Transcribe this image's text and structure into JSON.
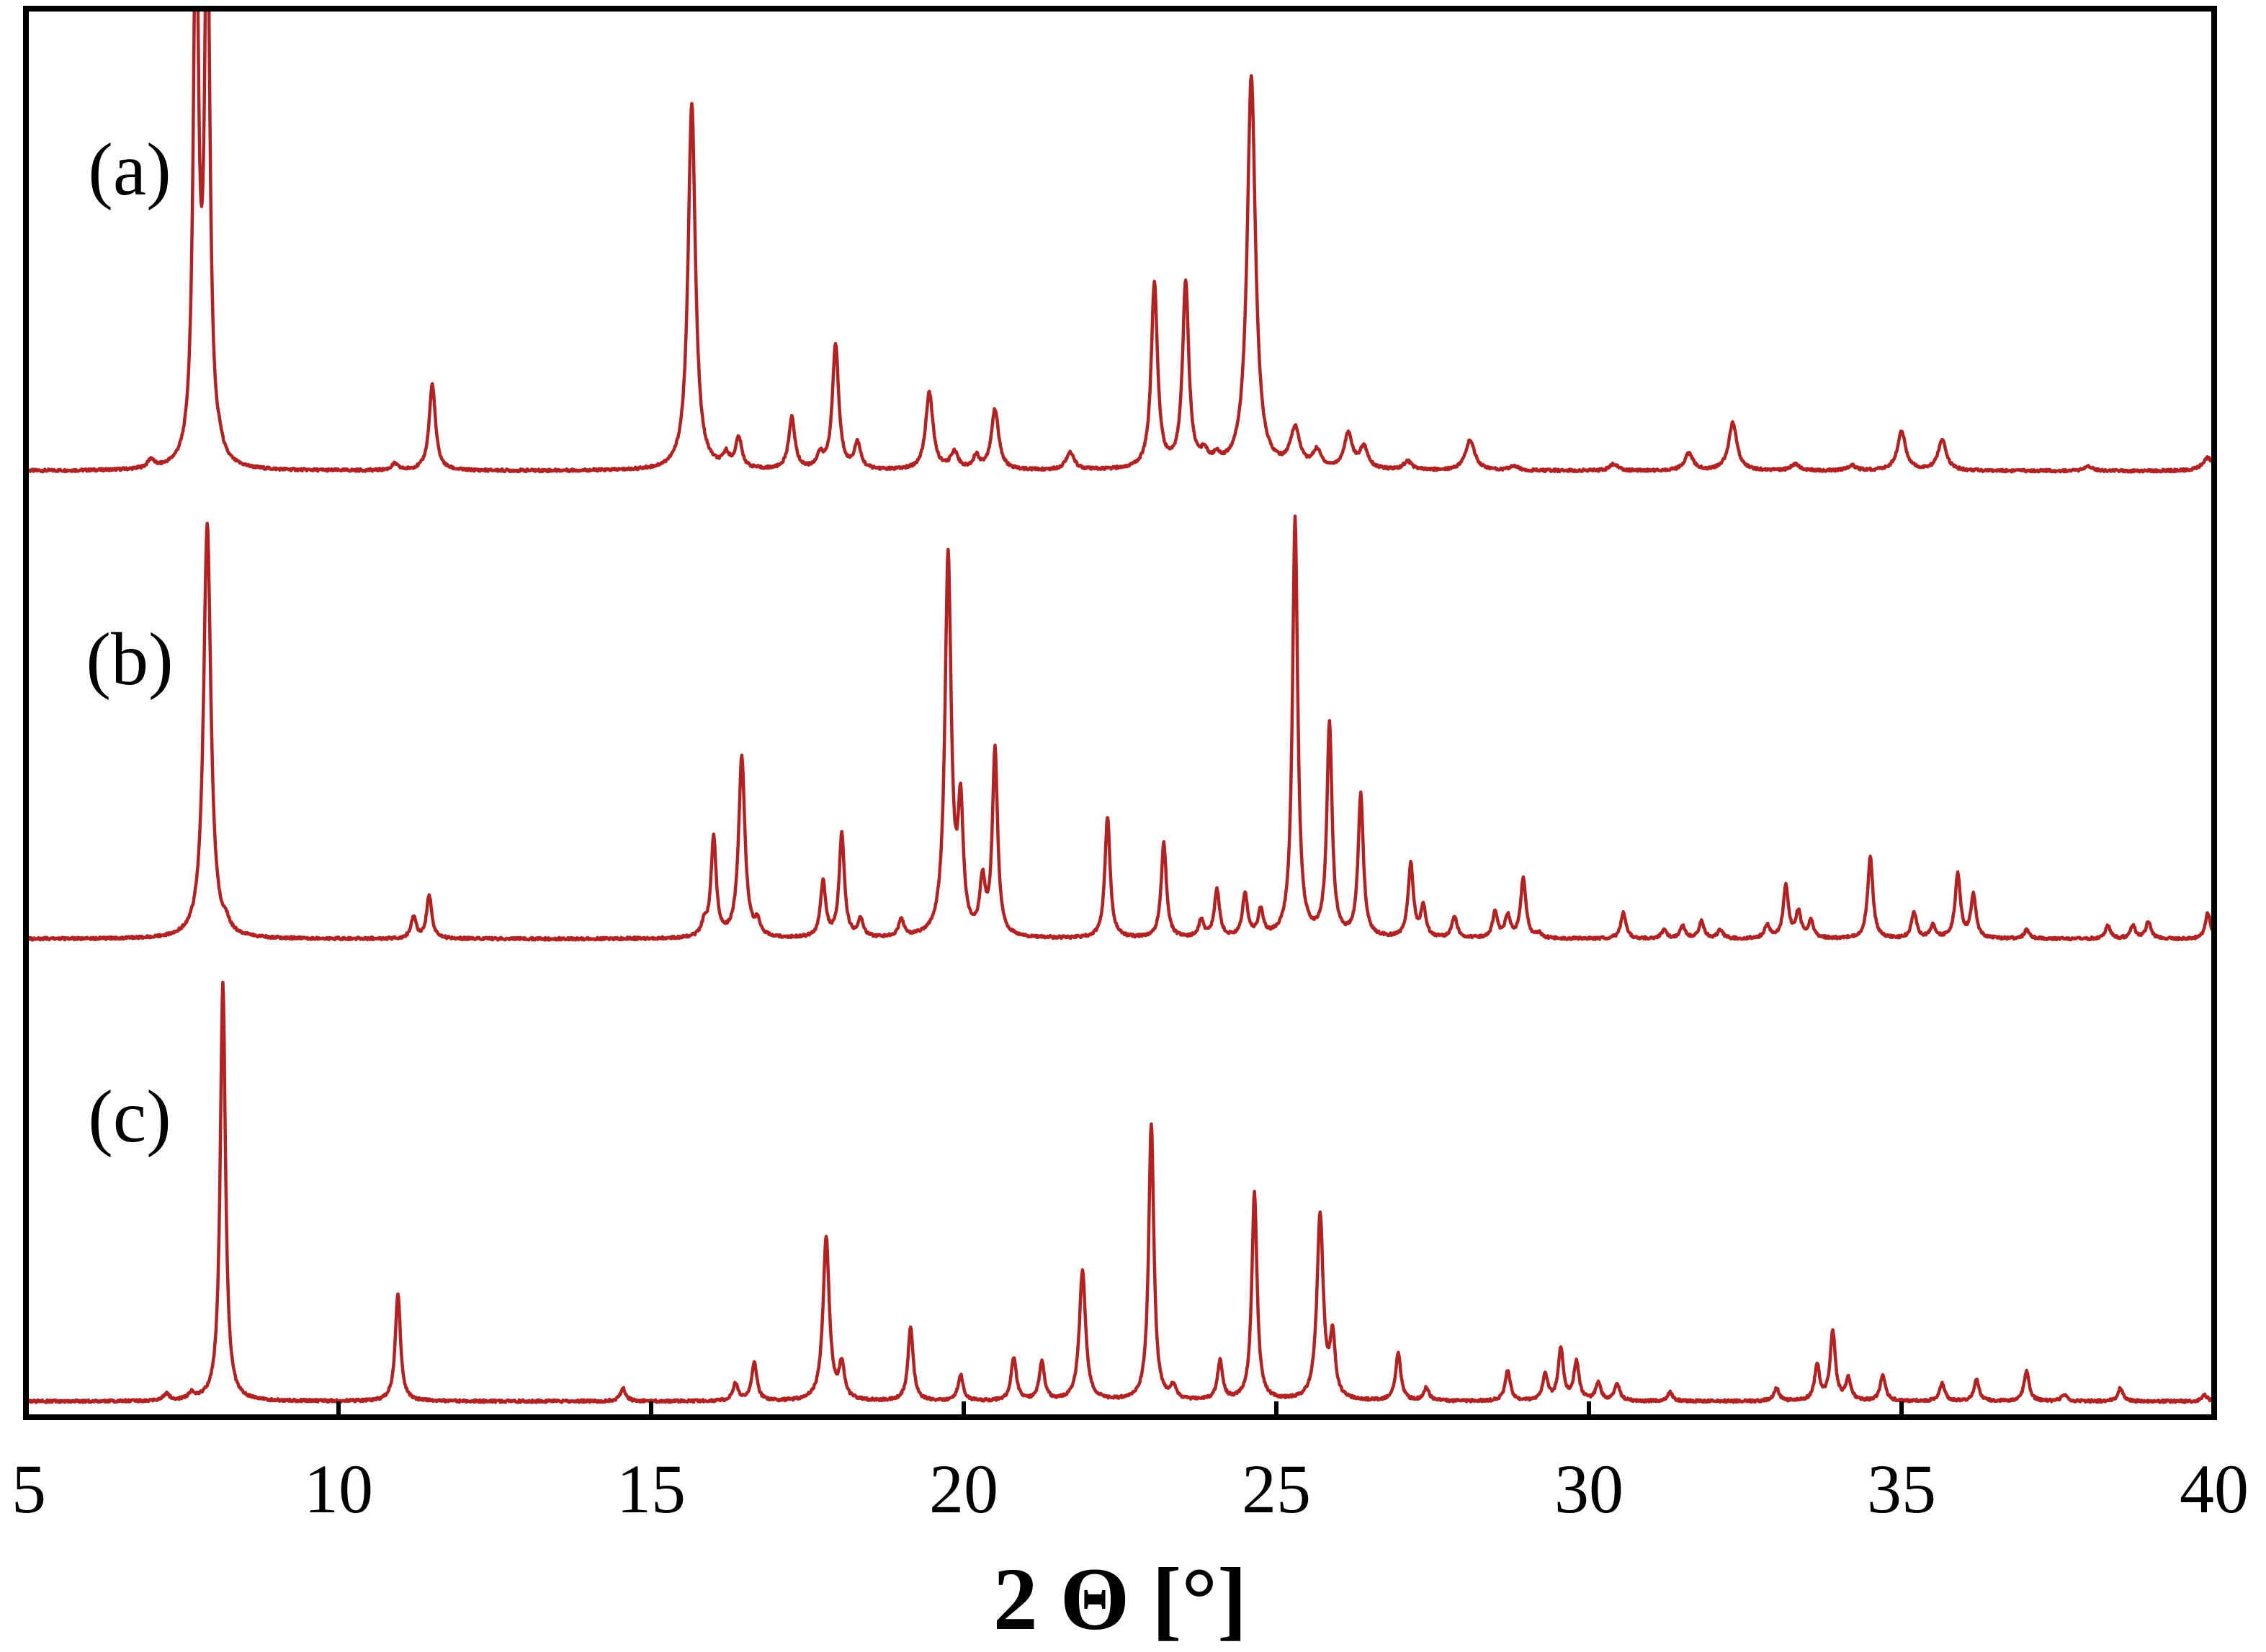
{
  "chart_data": {
    "type": "line",
    "xlabel": "2 Θ [°]",
    "xlim": [
      5,
      40
    ],
    "xticks": [
      5,
      10,
      15,
      20,
      25,
      30,
      35,
      40
    ],
    "y_ticks_shown": false,
    "grid": false,
    "line_color": "#b22222",
    "series": [
      {
        "label": "(a)",
        "baseline": 0.01,
        "peaks": [
          [
            7.0,
            0.02,
            0.06
          ],
          [
            7.72,
            1.3,
            0.05
          ],
          [
            7.9,
            1.3,
            0.05
          ],
          [
            8.1,
            0.02,
            0.06
          ],
          [
            10.9,
            0.015,
            0.06
          ],
          [
            11.5,
            0.2,
            0.06
          ],
          [
            15.65,
            0.85,
            0.07
          ],
          [
            16.2,
            0.03,
            0.06
          ],
          [
            16.4,
            0.07,
            0.06
          ],
          [
            17.25,
            0.12,
            0.06
          ],
          [
            17.7,
            0.03,
            0.06
          ],
          [
            17.95,
            0.29,
            0.06
          ],
          [
            18.3,
            0.06,
            0.06
          ],
          [
            19.45,
            0.18,
            0.07
          ],
          [
            19.85,
            0.04,
            0.07
          ],
          [
            20.2,
            0.03,
            0.06
          ],
          [
            20.5,
            0.14,
            0.07
          ],
          [
            21.7,
            0.04,
            0.08
          ],
          [
            23.05,
            0.43,
            0.06
          ],
          [
            23.55,
            0.43,
            0.06
          ],
          [
            23.85,
            0.03,
            0.07
          ],
          [
            24.05,
            0.02,
            0.07
          ],
          [
            24.6,
            0.91,
            0.08
          ],
          [
            25.3,
            0.09,
            0.09
          ],
          [
            25.65,
            0.04,
            0.08
          ],
          [
            26.15,
            0.08,
            0.08
          ],
          [
            26.4,
            0.05,
            0.08
          ],
          [
            27.1,
            0.02,
            0.08
          ],
          [
            28.1,
            0.07,
            0.09
          ],
          [
            28.8,
            0.01,
            0.08
          ],
          [
            30.4,
            0.015,
            0.08
          ],
          [
            31.6,
            0.04,
            0.08
          ],
          [
            32.3,
            0.11,
            0.08
          ],
          [
            33.3,
            0.015,
            0.08
          ],
          [
            34.2,
            0.012,
            0.08
          ],
          [
            35.0,
            0.09,
            0.08
          ],
          [
            35.65,
            0.07,
            0.08
          ],
          [
            38.0,
            0.01,
            0.08
          ],
          [
            39.9,
            0.03,
            0.1
          ]
        ]
      },
      {
        "label": "(b)",
        "baseline": 0.01,
        "peaks": [
          [
            7.9,
            0.96,
            0.07
          ],
          [
            8.2,
            0.02,
            0.06
          ],
          [
            11.2,
            0.05,
            0.05
          ],
          [
            11.45,
            0.1,
            0.05
          ],
          [
            15.85,
            0.03,
            0.05
          ],
          [
            16.0,
            0.23,
            0.05
          ],
          [
            16.45,
            0.42,
            0.06
          ],
          [
            16.7,
            0.03,
            0.05
          ],
          [
            17.75,
            0.13,
            0.05
          ],
          [
            18.05,
            0.24,
            0.05
          ],
          [
            18.35,
            0.04,
            0.05
          ],
          [
            19.0,
            0.04,
            0.05
          ],
          [
            19.75,
            0.88,
            0.06
          ],
          [
            19.95,
            0.28,
            0.05
          ],
          [
            20.3,
            0.12,
            0.05
          ],
          [
            20.5,
            0.43,
            0.05
          ],
          [
            22.3,
            0.28,
            0.05
          ],
          [
            23.2,
            0.22,
            0.05
          ],
          [
            23.8,
            0.04,
            0.05
          ],
          [
            24.05,
            0.11,
            0.05
          ],
          [
            24.5,
            0.1,
            0.05
          ],
          [
            24.75,
            0.06,
            0.05
          ],
          [
            25.3,
            0.97,
            0.05
          ],
          [
            25.85,
            0.49,
            0.05
          ],
          [
            26.35,
            0.33,
            0.05
          ],
          [
            27.15,
            0.17,
            0.05
          ],
          [
            27.35,
            0.07,
            0.05
          ],
          [
            27.85,
            0.05,
            0.05
          ],
          [
            28.5,
            0.06,
            0.05
          ],
          [
            28.7,
            0.05,
            0.05
          ],
          [
            28.95,
            0.14,
            0.05
          ],
          [
            29.2,
            0.01,
            0.05
          ],
          [
            30.55,
            0.06,
            0.05
          ],
          [
            31.2,
            0.02,
            0.05
          ],
          [
            31.5,
            0.03,
            0.05
          ],
          [
            31.8,
            0.04,
            0.05
          ],
          [
            32.1,
            0.02,
            0.05
          ],
          [
            32.85,
            0.03,
            0.05
          ],
          [
            33.15,
            0.12,
            0.05
          ],
          [
            33.35,
            0.06,
            0.05
          ],
          [
            33.55,
            0.04,
            0.05
          ],
          [
            34.5,
            0.19,
            0.05
          ],
          [
            35.2,
            0.06,
            0.05
          ],
          [
            35.5,
            0.03,
            0.05
          ],
          [
            35.9,
            0.15,
            0.05
          ],
          [
            36.15,
            0.1,
            0.05
          ],
          [
            37.0,
            0.02,
            0.05
          ],
          [
            38.3,
            0.03,
            0.05
          ],
          [
            38.7,
            0.03,
            0.05
          ],
          [
            38.95,
            0.04,
            0.05
          ],
          [
            39.9,
            0.06,
            0.05
          ]
        ]
      },
      {
        "label": "(c)",
        "baseline": 0.01,
        "peaks": [
          [
            7.25,
            0.015,
            0.06
          ],
          [
            7.65,
            0.015,
            0.06
          ],
          [
            8.15,
            0.97,
            0.05
          ],
          [
            10.95,
            0.25,
            0.05
          ],
          [
            14.55,
            0.03,
            0.05
          ],
          [
            16.35,
            0.04,
            0.05
          ],
          [
            16.65,
            0.09,
            0.05
          ],
          [
            17.8,
            0.38,
            0.06
          ],
          [
            18.05,
            0.08,
            0.05
          ],
          [
            19.15,
            0.17,
            0.05
          ],
          [
            19.95,
            0.06,
            0.05
          ],
          [
            20.8,
            0.1,
            0.05
          ],
          [
            21.25,
            0.09,
            0.05
          ],
          [
            21.9,
            0.3,
            0.06
          ],
          [
            23.0,
            0.64,
            0.05
          ],
          [
            23.35,
            0.03,
            0.05
          ],
          [
            24.1,
            0.09,
            0.05
          ],
          [
            24.65,
            0.48,
            0.05
          ],
          [
            25.7,
            0.43,
            0.06
          ],
          [
            25.9,
            0.14,
            0.05
          ],
          [
            26.95,
            0.11,
            0.05
          ],
          [
            27.4,
            0.03,
            0.05
          ],
          [
            28.7,
            0.07,
            0.05
          ],
          [
            29.3,
            0.06,
            0.05
          ],
          [
            29.55,
            0.12,
            0.05
          ],
          [
            29.8,
            0.09,
            0.05
          ],
          [
            30.15,
            0.04,
            0.05
          ],
          [
            30.45,
            0.04,
            0.05
          ],
          [
            31.3,
            0.02,
            0.05
          ],
          [
            33.0,
            0.03,
            0.05
          ],
          [
            33.65,
            0.08,
            0.05
          ],
          [
            33.9,
            0.16,
            0.05
          ],
          [
            34.15,
            0.05,
            0.05
          ],
          [
            34.7,
            0.06,
            0.05
          ],
          [
            35.65,
            0.04,
            0.05
          ],
          [
            36.2,
            0.05,
            0.05
          ],
          [
            37.0,
            0.07,
            0.05
          ],
          [
            37.6,
            0.015,
            0.05
          ],
          [
            38.5,
            0.03,
            0.05
          ],
          [
            39.85,
            0.015,
            0.05
          ]
        ]
      }
    ]
  }
}
